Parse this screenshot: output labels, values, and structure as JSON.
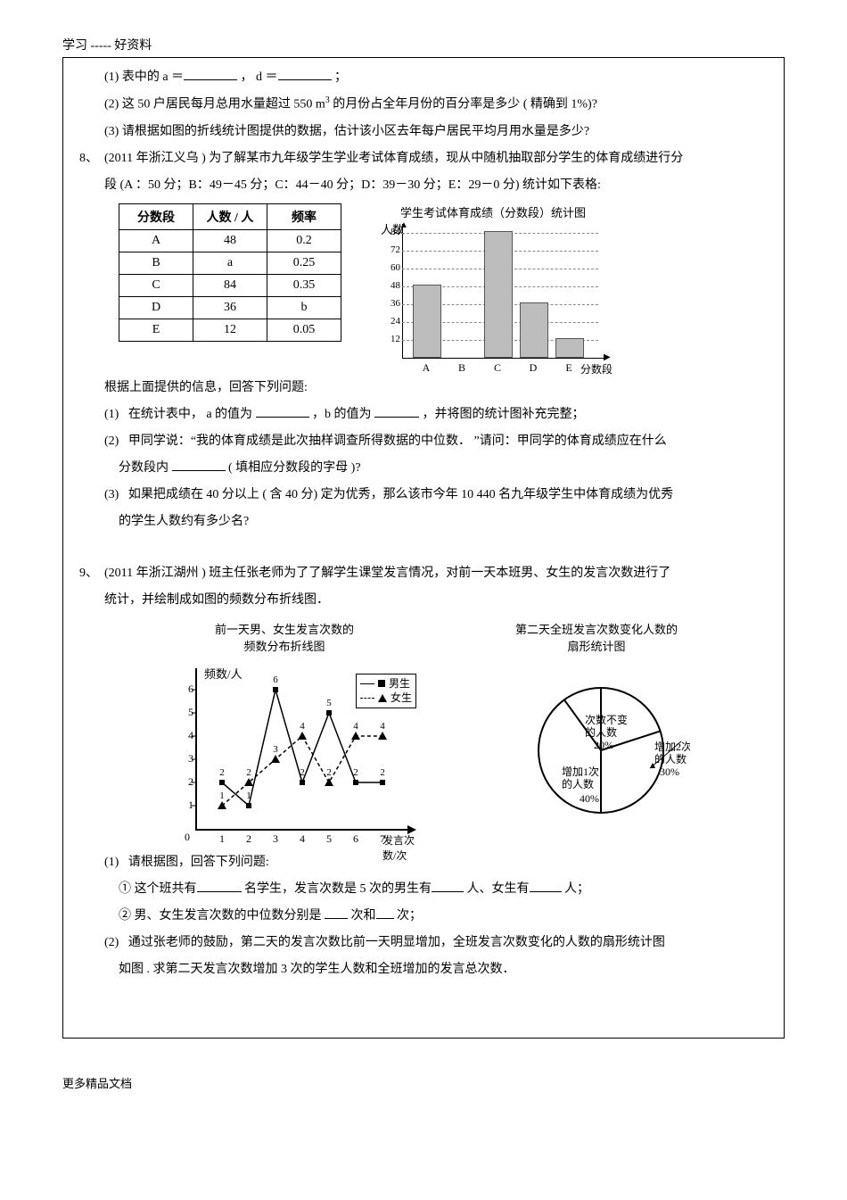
{
  "header": {
    "top_tag": "学习 ----- 好资料"
  },
  "q7": {
    "sub1": {
      "num": "(1)",
      "pre": "表中的  a  ＝",
      "mid": "，   d  ＝",
      "post": "；"
    },
    "sub2": {
      "num": "(2)",
      "text_a": "这 50 户居民每月总用水量超过      550 m",
      "sup": "3",
      "text_b": "的月份占全年月份的百分率是多少      ( 精确到  1%)?"
    },
    "sub3": {
      "num": "(3)",
      "text": "请根据如图的折线统计图提供的数据，估计该小区去年每户居民平均月用水量是多少?"
    }
  },
  "q8": {
    "num": "8、",
    "intro_a": "(2011  年浙江义乌  ) 为了解某市九年级学生学业考试体育成绩，现从中随机抽取部分学生的体育成绩进行分",
    "intro_b": "段 (A ：50 分；B：49－45 分；C：44－40 分；D：39－30 分；E：29－0 分) 统计如下表格:",
    "table": {
      "headers": [
        "分数段",
        "人数 / 人",
        "频率"
      ],
      "rows": [
        [
          "A",
          "48",
          "0.2"
        ],
        [
          "B",
          "a",
          "0.25"
        ],
        [
          "C",
          "84",
          "0.35"
        ],
        [
          "D",
          "36",
          "b"
        ],
        [
          "E",
          "12",
          "0.05"
        ]
      ]
    },
    "barchart": {
      "title": "学生考试体育成绩（分数段）统计图",
      "ylabel": "人数",
      "xlabel": "分数段",
      "yticks": [
        12,
        24,
        36,
        48,
        60,
        72,
        84
      ],
      "ymax": 90,
      "cats": [
        "A",
        "B",
        "C",
        "D",
        "E"
      ],
      "vals": [
        48,
        null,
        84,
        36,
        12
      ]
    },
    "after_table": "根据上面提供的信息，回答下列问题:",
    "sub1": {
      "num": "(1)",
      "a": "在统计表中，  a 的值为",
      "b": "，b 的值为",
      "c": "，并将图的统计图补充完整；"
    },
    "sub2": {
      "num": "(2)",
      "l1": "甲同学说：“我的体育成绩是此次抽样调查所得数据的中位数．      ”请问：甲同学的体育成绩应在什么",
      "l2": "分数段内",
      "l2b": "( 填相应分数段的字母   )?"
    },
    "sub3": {
      "num": "(3)",
      "l1": "如果把成绩在   40 分以上 ( 含 40 分) 定为优秀，那么该市今年     10 440  名九年级学生中体育成绩为优秀",
      "l2": "的学生人数约有多少名?"
    }
  },
  "q9": {
    "num": "9、",
    "intro_a": "(2011  年浙江湖州  ) 班主任张老师为了了解学生课堂发言情况，对前一天本班男、女生的发言次数进行了",
    "intro_b": "统计，并绘制成如图的频数分布折线图．",
    "linechart": {
      "title_l1": "前一天男、女生发言次数的",
      "title_l2": "频数分布折线图",
      "ylabel": "频数/人",
      "xlabel_l1": "发言次",
      "xlabel_l2": "数/次",
      "yticks": [
        1,
        2,
        3,
        4,
        5,
        6
      ],
      "xticks": [
        1,
        2,
        3,
        4,
        5,
        6,
        7
      ],
      "legend": {
        "m": "男生",
        "f": "女生"
      },
      "male": [
        2,
        1,
        6,
        2,
        5,
        2,
        2
      ],
      "female": [
        1,
        2,
        3,
        4,
        2,
        4,
        4
      ]
    },
    "pie": {
      "title_l1": "第二天全班发言次数变化人数的",
      "title_l2": "扇形统计图",
      "labels": {
        "nochange_l1": "次数不变",
        "nochange_l2": "的人数",
        "nochange_pct": "20%",
        "inc2_l1": "增加2次",
        "inc2_l2": "的人数",
        "inc2_pct": "30%",
        "inc1_l1": "增加1次",
        "inc1_l2": "的人数",
        "inc1_pct": "40%"
      }
    },
    "sub1": {
      "num": "(1)",
      "head": "请根据图，回答下列问题:",
      "p1_a": "①  这个班共有",
      "p1_b": "名学生，发言次数是   5 次的男生有",
      "p1_c": "人、女生有",
      "p1_d": "人；",
      "p2_a": "②  男、女生发言次数的中位数分别是      ",
      "p2_b": "次和",
      "p2_c": "次；"
    },
    "sub2": {
      "num": "(2)",
      "l1": "通过张老师的鼓励，第二天的发言次数比前一天明显增加，全班发言次数变化的人数的扇形统计图",
      "l2": "如图 . 求第二天发言次数增加     3 次的学生人数和全班增加的发言总次数．"
    }
  },
  "footer": "更多精品文档"
}
